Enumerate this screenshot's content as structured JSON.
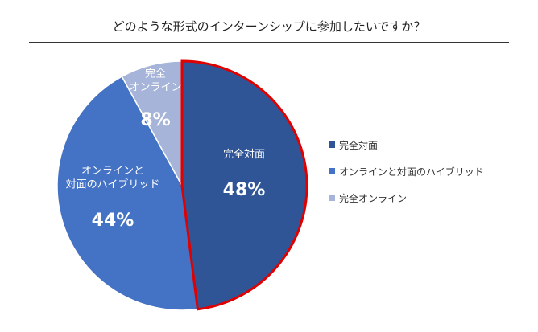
{
  "chart_data": {
    "type": "pie",
    "title": "どのような形式のインターンシップに参加したいですか？",
    "categories": [
      "完全対面",
      "オンラインと対面のハイブリッド",
      "完全オンライン"
    ],
    "values": [
      48,
      44,
      8
    ],
    "value_labels": [
      "48%",
      "44%",
      "8%"
    ],
    "slice_label_lines": [
      [
        "完全対面"
      ],
      [
        "オンラインと",
        "対面のハイブリッド"
      ],
      [
        "完全",
        "オンライン"
      ]
    ],
    "colors": [
      "#2f5597",
      "#4472c4",
      "#a5b4d8"
    ],
    "highlight_slice": 0,
    "highlight_color": "#e00000",
    "legend_position": "right",
    "legend": [
      {
        "label": "完全対面",
        "color": "#2f5597"
      },
      {
        "label": "オンラインと対面のハイブリッド",
        "color": "#4472c4"
      },
      {
        "label": "完全オンライン",
        "color": "#a5b4d8"
      }
    ]
  }
}
